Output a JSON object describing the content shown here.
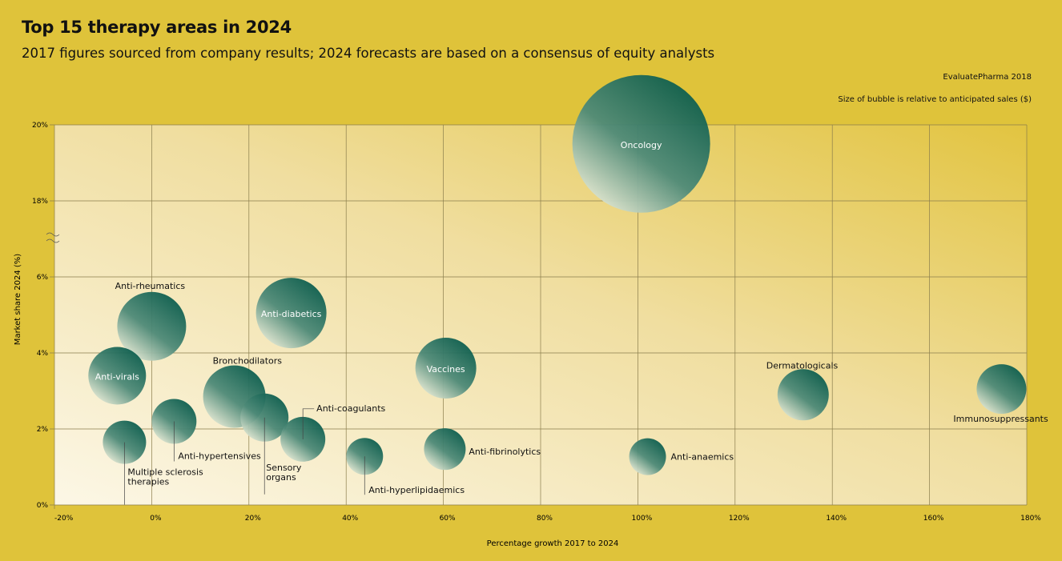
{
  "header": {
    "title": "Top 15 therapy areas in 2024",
    "subtitle": "2017 figures sourced from company results; 2024 forecasts are based on a consensus of equity analysts",
    "source": "EvaluatePharma 2018",
    "size_note": "Size of bubble is relative to anticipated sales ($)"
  },
  "chart_data": {
    "type": "scatter",
    "subtype": "bubble",
    "title": "Top 15 therapy areas in 2024",
    "xlabel": "Percentage growth 2017 to 2024",
    "ylabel": "Market share 2024 (%)",
    "xlim": [
      -20,
      180
    ],
    "ylim": [
      0,
      20
    ],
    "y_axis_break": [
      6,
      18
    ],
    "x_ticks": [
      "-20%",
      "0%",
      "20%",
      "40%",
      "60%",
      "80%",
      "100%",
      "120%",
      "140%",
      "160%",
      "180%"
    ],
    "y_ticks": [
      "0%",
      "2%",
      "4%",
      "6%",
      "18%",
      "20%"
    ],
    "grid": true,
    "colors": {
      "bubble_dark": "#075a4b",
      "bubble_light": "#e8ecd8",
      "background": "#dfc33a"
    },
    "points": [
      {
        "label": "Oncology",
        "x": 100.7,
        "y": 19.5,
        "size": 86
      },
      {
        "label": "Anti-rheumatics",
        "x": 0,
        "y": 4.7,
        "size": 43
      },
      {
        "label": "Anti-diabetics",
        "x": 28.7,
        "y": 5.05,
        "size": 44
      },
      {
        "label": "Anti-virals",
        "x": -7.1,
        "y": 3.4,
        "size": 36
      },
      {
        "label": "Vaccines",
        "x": 60.5,
        "y": 3.6,
        "size": 38
      },
      {
        "label": "Bronchodilators",
        "x": 17,
        "y": 2.85,
        "size": 39
      },
      {
        "label": "Sensory organs",
        "x": 23.2,
        "y": 2.3,
        "size": 30
      },
      {
        "label": "Anti-hypertensives",
        "x": 4.6,
        "y": 2.2,
        "size": 28
      },
      {
        "label": "Multiple sclerosis therapies",
        "x": -5.6,
        "y": 1.65,
        "size": 27
      },
      {
        "label": "Anti-coagulants",
        "x": 31.1,
        "y": 1.73,
        "size": 28
      },
      {
        "label": "Anti-hyperlipidaemics",
        "x": 43.8,
        "y": 1.28,
        "size": 23
      },
      {
        "label": "Anti-fibrinolytics",
        "x": 60.3,
        "y": 1.47,
        "size": 26
      },
      {
        "label": "Anti-anaemics",
        "x": 102,
        "y": 1.27,
        "size": 23
      },
      {
        "label": "Dermatologicals",
        "x": 134,
        "y": 2.9,
        "size": 32
      },
      {
        "label": "Immunosuppressants",
        "x": 174.8,
        "y": 3.05,
        "size": 31
      }
    ]
  }
}
